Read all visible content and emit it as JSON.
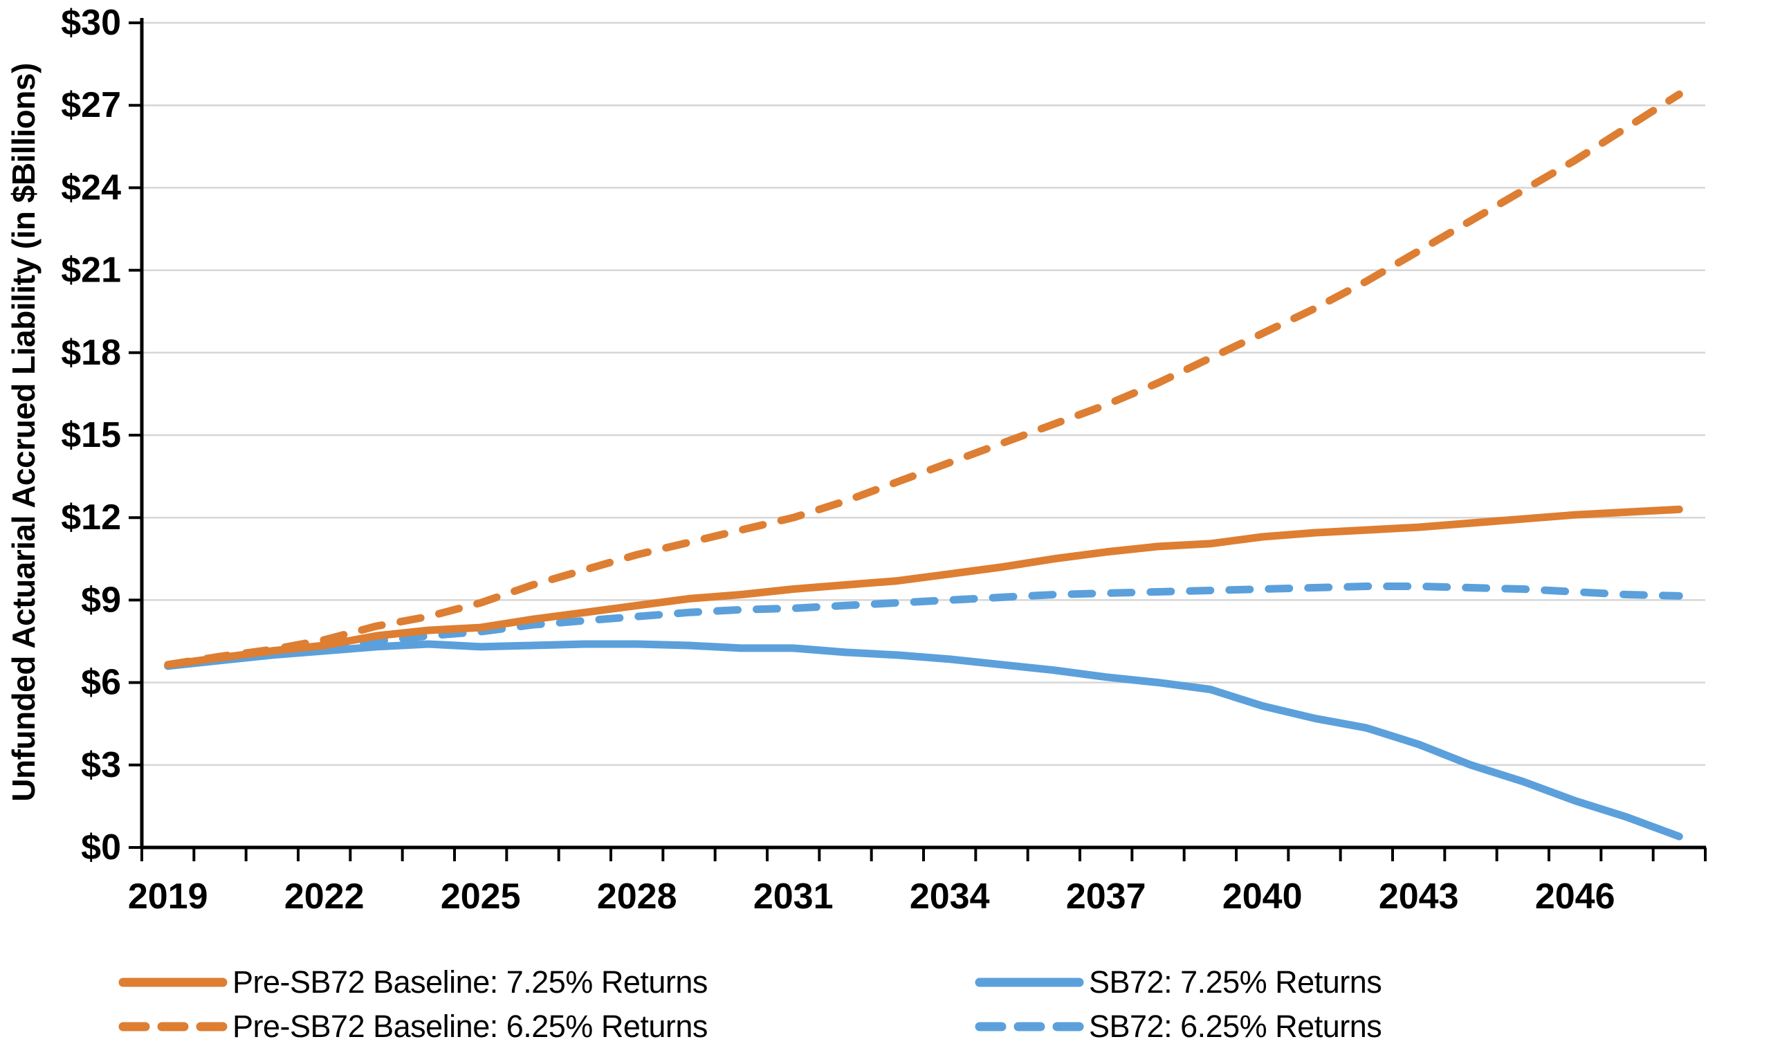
{
  "chart_data": {
    "type": "line",
    "title": "",
    "xlabel": "",
    "ylabel": "Unfunded Actuarial Accrued Liability (in $Billions)",
    "ylim": [
      0,
      30
    ],
    "ytick_values": [
      0,
      3,
      6,
      9,
      12,
      15,
      18,
      21,
      24,
      27,
      30
    ],
    "ytick_labels": [
      "$0",
      "$3",
      "$6",
      "$9",
      "$12",
      "$15",
      "$18",
      "$21",
      "$24",
      "$27",
      "$30"
    ],
    "x": [
      2019,
      2020,
      2021,
      2022,
      2023,
      2024,
      2025,
      2026,
      2027,
      2028,
      2029,
      2030,
      2031,
      2032,
      2033,
      2034,
      2035,
      2036,
      2037,
      2038,
      2039,
      2040,
      2041,
      2042,
      2043,
      2044,
      2045,
      2046,
      2047,
      2048
    ],
    "xtick_labels": [
      "2019",
      "2022",
      "2025",
      "2028",
      "2031",
      "2034",
      "2037",
      "2040",
      "2043",
      "2046"
    ],
    "grid": "horizontal",
    "legend_position": "bottom-two-columns",
    "series": [
      {
        "name": "Pre-SB72 Baseline: 7.25% Returns",
        "color": "#DD7E32",
        "dash": "solid",
        "values": [
          6.65,
          6.9,
          7.15,
          7.35,
          7.7,
          7.9,
          8.0,
          8.3,
          8.55,
          8.8,
          9.05,
          9.2,
          9.4,
          9.55,
          9.7,
          9.95,
          10.2,
          10.5,
          10.75,
          10.95,
          11.05,
          11.3,
          11.45,
          11.55,
          11.65,
          11.8,
          11.95,
          12.1,
          12.2,
          12.3
        ]
      },
      {
        "name": "Pre-SB72 Baseline: 6.25% Returns",
        "color": "#DD7E32",
        "dash": "dashed",
        "values": [
          6.65,
          6.95,
          7.2,
          7.55,
          8.05,
          8.4,
          8.9,
          9.55,
          10.1,
          10.65,
          11.1,
          11.55,
          12.0,
          12.6,
          13.3,
          14.0,
          14.7,
          15.4,
          16.1,
          16.9,
          17.8,
          18.7,
          19.6,
          20.6,
          21.7,
          22.8,
          23.9,
          25.0,
          26.2,
          27.4
        ]
      },
      {
        "name": "SB72: 7.25% Returns",
        "color": "#5BA0DB",
        "dash": "solid",
        "values": [
          6.6,
          6.8,
          7.0,
          7.15,
          7.3,
          7.4,
          7.3,
          7.35,
          7.4,
          7.4,
          7.35,
          7.25,
          7.25,
          7.1,
          7.0,
          6.85,
          6.65,
          6.45,
          6.2,
          6.0,
          5.75,
          5.15,
          4.7,
          4.35,
          3.75,
          3.0,
          2.4,
          1.7,
          1.1,
          0.4
        ]
      },
      {
        "name": "SB72: 6.25% Returns",
        "color": "#5BA0DB",
        "dash": "dashed",
        "values": [
          6.6,
          6.85,
          7.05,
          7.25,
          7.5,
          7.7,
          7.85,
          8.1,
          8.25,
          8.4,
          8.55,
          8.65,
          8.7,
          8.8,
          8.9,
          9.0,
          9.1,
          9.2,
          9.25,
          9.3,
          9.35,
          9.4,
          9.45,
          9.5,
          9.5,
          9.45,
          9.4,
          9.3,
          9.2,
          9.15
        ]
      }
    ]
  },
  "colors": {
    "gridline": "#D6D6D6",
    "axis": "#000000",
    "tick_text": "#000000",
    "orange": "#DD7E32",
    "blue": "#5BA0DB"
  }
}
